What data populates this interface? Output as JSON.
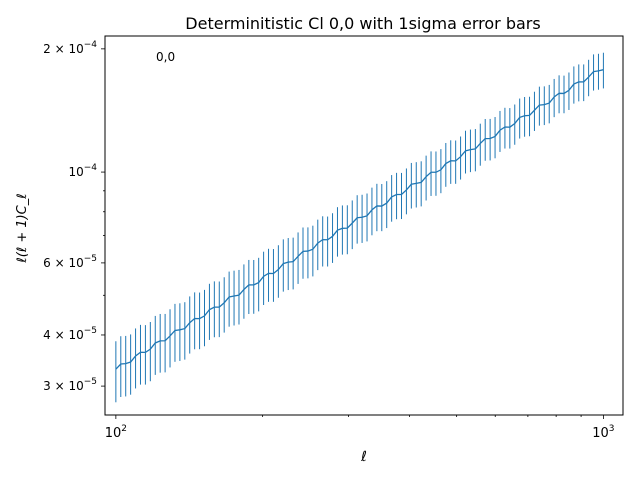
{
  "chart_data": {
    "type": "line",
    "title": "Determinitistic Cl 0,0 with 1sigma error bars",
    "xlabel": "ℓ",
    "ylabel": "ℓ(ℓ + 1)C_ℓ",
    "annotation": "0,0",
    "xscale": "log",
    "yscale": "log",
    "xlim": [
      95,
      1097
    ],
    "ylim": [
      2.55e-05,
      0.000215
    ],
    "xticks": [
      {
        "value": 100,
        "base": "10",
        "exp": "2"
      },
      {
        "value": 1000,
        "base": "10",
        "exp": "3"
      }
    ],
    "yticks": [
      {
        "value": 3e-05,
        "mant": "3",
        "exp": "−5"
      },
      {
        "value": 4e-05,
        "mant": "4",
        "exp": "−5"
      },
      {
        "value": 6e-05,
        "mant": "6",
        "exp": "−5"
      },
      {
        "value": 0.0001,
        "mant": "",
        "exp": "−4"
      },
      {
        "value": 0.0002,
        "mant": "2",
        "exp": "−4"
      }
    ],
    "grid": false,
    "legend": "none",
    "series": [
      {
        "l_min": 100,
        "l_max": 1000,
        "points": 100,
        "spacing": "log",
        "y_at_l_min": 3.3e-05,
        "y_at_l_max": 0.00018,
        "sigma_fraction_at_l_min": 0.17,
        "sigma_fraction_at_l_max": 0.1,
        "color": "#1f77b4"
      }
    ]
  }
}
